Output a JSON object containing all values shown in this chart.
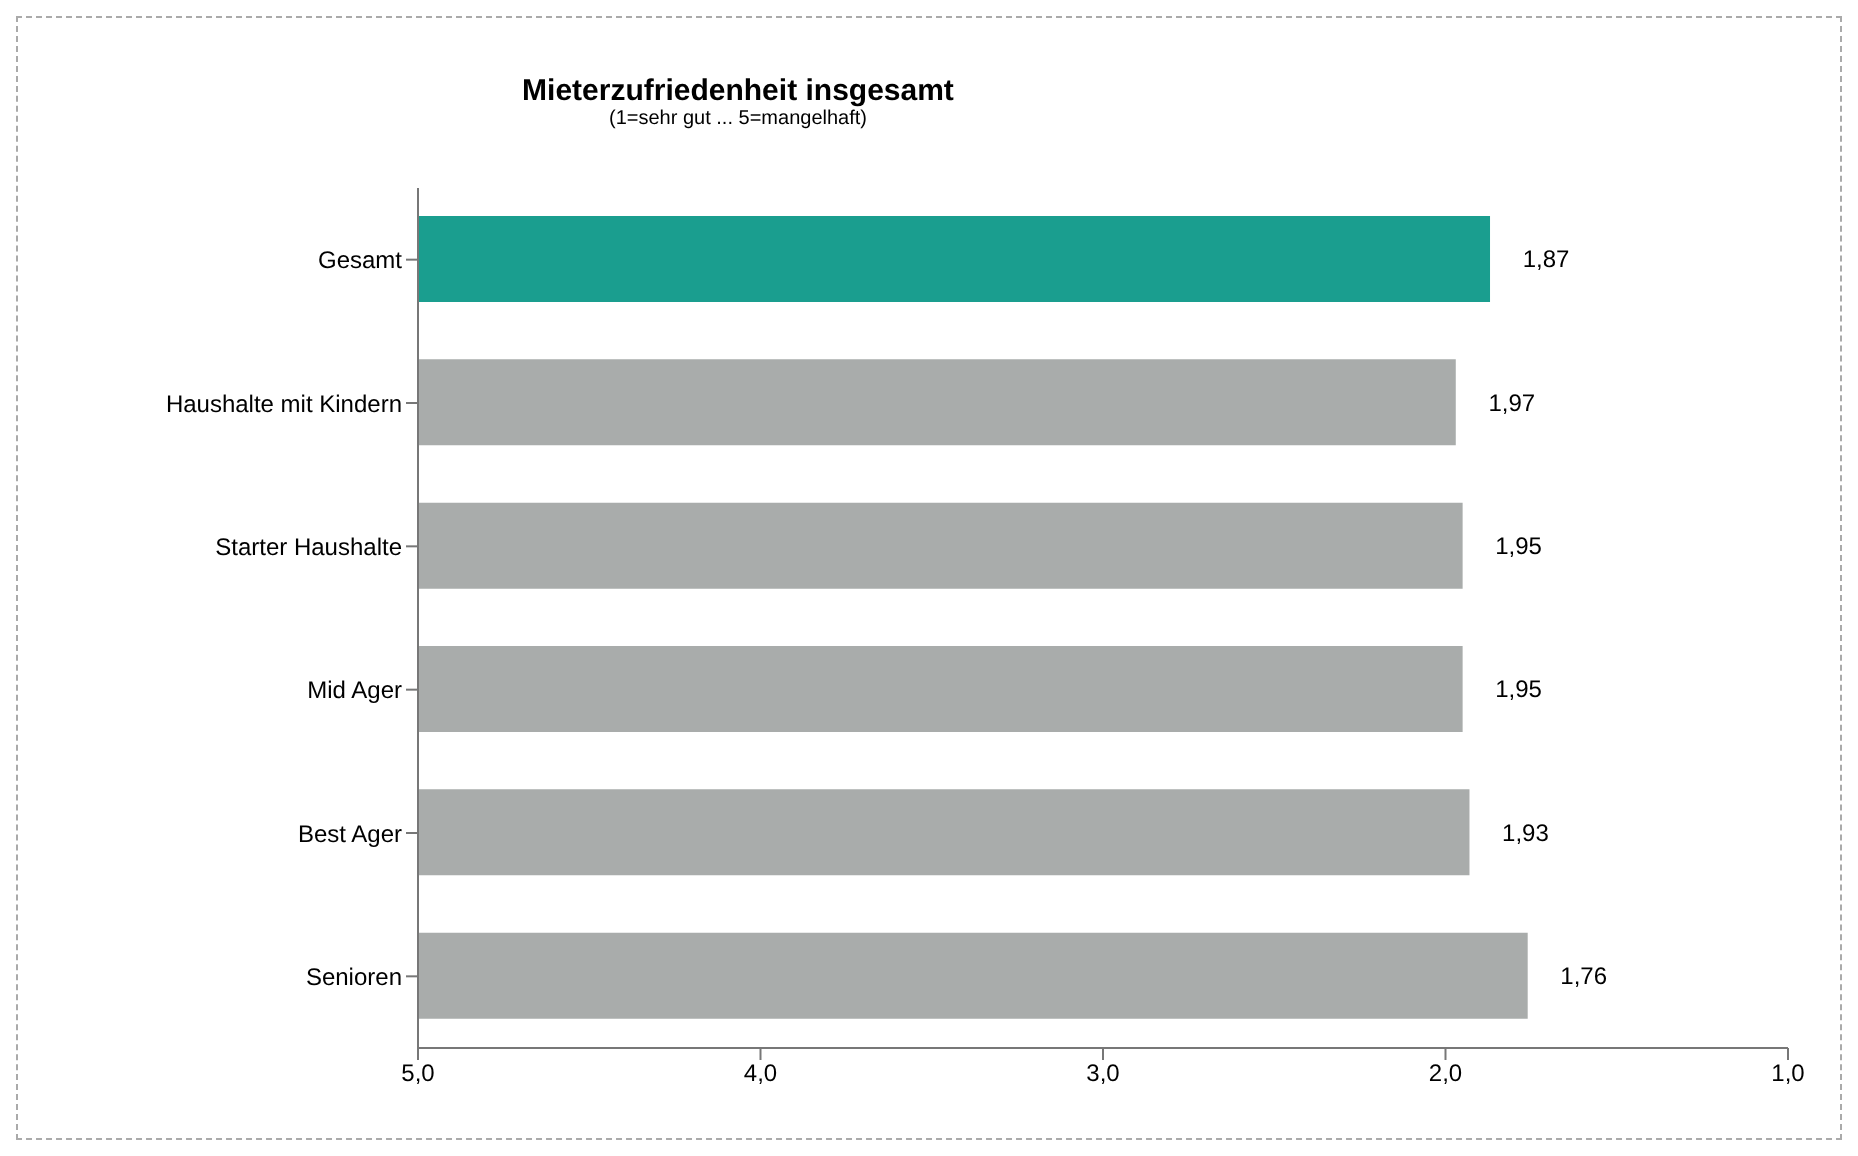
{
  "chart_data": {
    "type": "bar",
    "orientation": "horizontal",
    "title": "Mieterzufriedenheit insgesamt",
    "subtitle": "(1=sehr gut ... 5=mangelhaft)",
    "categories": [
      "Gesamt",
      "Haushalte mit Kindern",
      "Starter Haushalte",
      "Mid Ager",
      "Best Ager",
      "Senioren"
    ],
    "base": [
      5,
      5,
      5,
      5,
      5,
      5
    ],
    "values": [
      -3.13,
      -3.03,
      -3.05,
      -3.05,
      -3.07,
      -3.24
    ],
    "value_labels": [
      "1,87",
      "1,97",
      "1,95",
      "1,95",
      "1,93",
      "1,76"
    ],
    "colors": [
      "#1a9e8f",
      "#a9acab",
      "#a9acab",
      "#a9acab",
      "#a9acab",
      "#a9acab"
    ],
    "xlim": [
      5,
      1
    ],
    "xticks": [
      {
        "value": 5,
        "label": "5,0"
      },
      {
        "value": 4,
        "label": "4,0"
      },
      {
        "value": 3,
        "label": "3,0"
      },
      {
        "value": 2,
        "label": "2,0"
      },
      {
        "value": 1,
        "label": "1,0"
      }
    ],
    "grid": false,
    "legend": false
  }
}
